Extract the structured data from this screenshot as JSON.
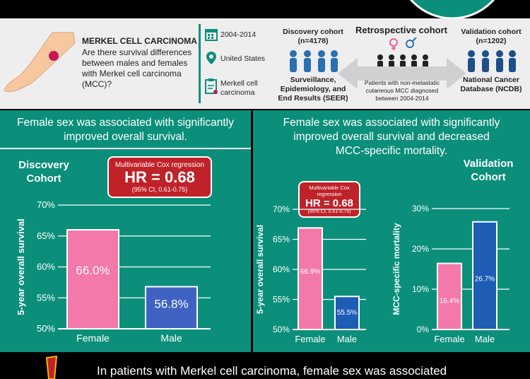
{
  "header": {
    "title": "MERKEL CELL CARCINOMA",
    "question": [
      "Are there survival differences",
      "between males and females",
      "with Merkel cell carcinoma",
      "(MCC)?"
    ],
    "meta": {
      "years": "2004-2014",
      "location": "United States",
      "diagnosis": [
        "Merkell cell",
        "carcinoma"
      ]
    },
    "discovery": {
      "label": "Discovery cohort",
      "n": "(n=4178)",
      "source": [
        "Surveillance,",
        "Epidemiology, and",
        "End Results (SEER)"
      ]
    },
    "retrospective": {
      "label": "Retrospective cohort",
      "description": [
        "Patients with non-metastatic",
        "cutaneous MCC diagnosed",
        "between 2004-2014"
      ]
    },
    "validation": {
      "label": "Validation cohort",
      "n": "(n=1202)",
      "source": [
        "National Cancer",
        "Database (NCDB)"
      ]
    }
  },
  "left_panel": {
    "title": [
      "Female sex was associated with significantly",
      "improved overall survival."
    ],
    "cohort": [
      "Discovery",
      "Cohort"
    ],
    "hr": {
      "label": "Multivariable Cox regression",
      "value": "HR =  0.68",
      "ci": "(95% CI, 0.61-0.75)"
    }
  },
  "right_panel": {
    "title": [
      "Female sex was associated with significantly",
      "improved overall survival and decreased",
      "MCC-specific mortality."
    ],
    "cohort": [
      "Validation",
      "Cohort"
    ],
    "hr": {
      "label": "Multivariable Cox",
      "label2": "regression",
      "value": "HR = 0.68",
      "ci": "(95% CI, 0.61-0.75)"
    }
  },
  "bottom": {
    "text": "In patients with Merkel cell carcinoma, female sex was associated"
  },
  "chart_data": [
    {
      "type": "bar",
      "categories": [
        "Female",
        "Male"
      ],
      "values": [
        66.0,
        56.8
      ],
      "value_labels": [
        "66.0%",
        "56.8%"
      ],
      "ylabel": "5-year overall survival",
      "ylim": [
        50,
        70
      ],
      "yticks": [
        "50%",
        "55%",
        "60%",
        "65%",
        "70%"
      ],
      "colors": [
        "#f279a9",
        "#3f63c2"
      ]
    },
    {
      "type": "bar",
      "categories": [
        "Female",
        "Male"
      ],
      "values": [
        66.9,
        55.5
      ],
      "value_labels": [
        "66.9%",
        "55.5%"
      ],
      "ylabel": "5-year overall survival",
      "ylim": [
        50,
        70
      ],
      "yticks": [
        "50%",
        "55%",
        "60%",
        "65%",
        "70%"
      ],
      "colors": [
        "#f279a9",
        "#1d5db3"
      ]
    },
    {
      "type": "bar",
      "categories": [
        "Female",
        "Male"
      ],
      "values": [
        16.4,
        26.7
      ],
      "value_labels": [
        "16.4%",
        "26.7%"
      ],
      "ylabel": "MCC-specific mortality",
      "ylim": [
        0,
        30
      ],
      "yticks": [
        "0%",
        "10%",
        "20%",
        "30%"
      ],
      "colors": [
        "#f279a9",
        "#1d5db3"
      ]
    }
  ]
}
